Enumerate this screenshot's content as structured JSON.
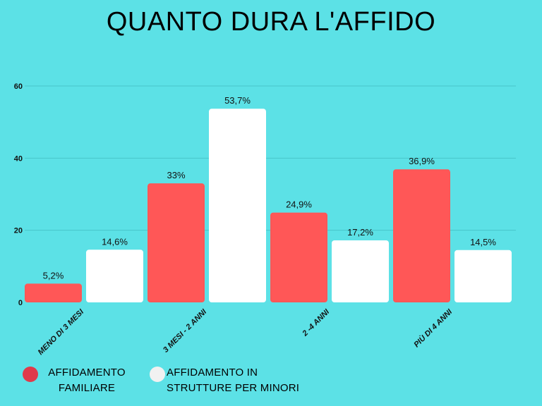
{
  "chart_data": {
    "type": "bar",
    "title": "QUANTO DURA L'AFFIDO",
    "categories": [
      "MENO DI 3 MESI",
      "3 MESI - 2 ANNI",
      "2 -4 ANNI",
      "PIÙ DI 4 ANNI"
    ],
    "series": [
      {
        "name": "AFFIDAMENTO FAMILIARE",
        "color": "#ff5757",
        "values": [
          5.2,
          33,
          24.9,
          36.9
        ],
        "labels": [
          "5,2%",
          "33%",
          "24,9%",
          "36,9%"
        ]
      },
      {
        "name": "AFFIDAMENTO IN STRUTTURE PER MINORI",
        "color": "#ffffff",
        "values": [
          14.6,
          53.7,
          17.2,
          14.5
        ],
        "labels": [
          "14,6%",
          "53,7%",
          "17,2%",
          "14,5%"
        ]
      }
    ],
    "y_ticks": [
      "0",
      "20",
      "40",
      "60"
    ],
    "ylim": [
      0,
      60
    ],
    "grid": true,
    "legend_position": "bottom-left"
  },
  "legend": {
    "items": [
      {
        "line1": "AFFIDAMENTO",
        "line2": "FAMILIARE",
        "color": "#e03a4a"
      },
      {
        "line1": "AFFIDAMENTO IN",
        "line2": "STRUTTURE PER MINORI",
        "color": "#f1f1f1"
      }
    ]
  },
  "colors": {
    "background": "#5ce1e6",
    "gridline": "#47c5ca"
  }
}
